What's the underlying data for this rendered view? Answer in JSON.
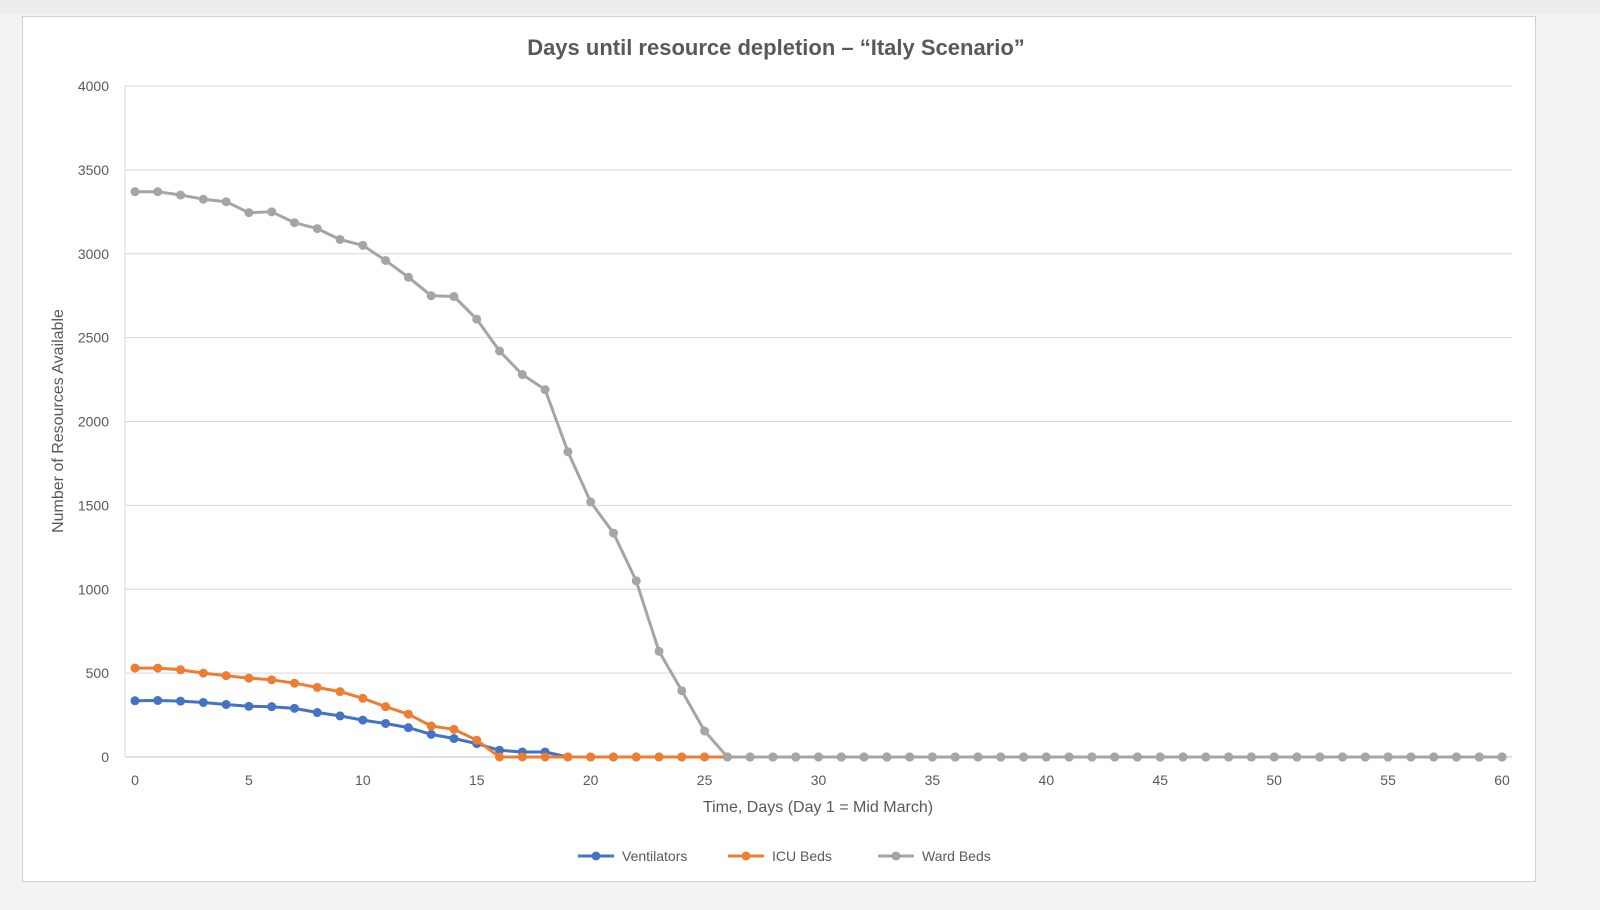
{
  "chart_data": {
    "type": "line",
    "title": "Days until resource depletion – “Italy Scenario”",
    "xlabel": "Time, Days (Day 1 = Mid March)",
    "ylabel": "Number of Resources Available",
    "xlim": [
      0,
      60
    ],
    "ylim": [
      0,
      4000
    ],
    "x_ticks": [
      "0",
      "5",
      "10",
      "15",
      "20",
      "25",
      "30",
      "35",
      "40",
      "45",
      "50",
      "55",
      "60"
    ],
    "y_ticks": [
      "0",
      "500",
      "1000",
      "1500",
      "2000",
      "2500",
      "3000",
      "3500",
      "4000"
    ],
    "grid": "horizontal",
    "legend_position": "bottom",
    "x": [
      0,
      1,
      2,
      3,
      4,
      5,
      6,
      7,
      8,
      9,
      10,
      11,
      12,
      13,
      14,
      15,
      16,
      17,
      18,
      19,
      20,
      21,
      22,
      23,
      24,
      25,
      26,
      27,
      28,
      29,
      30,
      31,
      32,
      33,
      34,
      35,
      36,
      37,
      38,
      39,
      40,
      41,
      42,
      43,
      44,
      45,
      46,
      47,
      48,
      49,
      50,
      51,
      52,
      53,
      54,
      55,
      56,
      57,
      58,
      59,
      60
    ],
    "series": [
      {
        "name": "Ventilators",
        "color": "#4472c4",
        "values": [
          335,
          337,
          333,
          325,
          313,
          302,
          300,
          290,
          265,
          245,
          220,
          200,
          175,
          135,
          110,
          80,
          40,
          30,
          30,
          0,
          0,
          0,
          0,
          0,
          0,
          0,
          0,
          0,
          0,
          0,
          0,
          0,
          0,
          0,
          0,
          0,
          0,
          0,
          0,
          0,
          0,
          0,
          0,
          0,
          0,
          0,
          0,
          0,
          0,
          0,
          0,
          0,
          0,
          0,
          0,
          0,
          0,
          0,
          0,
          0,
          0
        ]
      },
      {
        "name": "ICU Beds",
        "color": "#ed7d31",
        "values": [
          530,
          530,
          520,
          500,
          485,
          470,
          460,
          440,
          415,
          390,
          350,
          300,
          255,
          185,
          165,
          100,
          0,
          0,
          0,
          0,
          0,
          0,
          0,
          0,
          0,
          0,
          0,
          0,
          0,
          0,
          0,
          0,
          0,
          0,
          0,
          0,
          0,
          0,
          0,
          0,
          0,
          0,
          0,
          0,
          0,
          0,
          0,
          0,
          0,
          0,
          0,
          0,
          0,
          0,
          0,
          0,
          0,
          0,
          0,
          0,
          0
        ]
      },
      {
        "name": "Ward Beds",
        "color": "#a5a5a5",
        "values": [
          3370,
          3370,
          3350,
          3325,
          3310,
          3245,
          3250,
          3185,
          3150,
          3085,
          3050,
          2960,
          2860,
          2750,
          2745,
          2610,
          2420,
          2280,
          2190,
          1820,
          1520,
          1335,
          1050,
          630,
          395,
          155,
          0,
          0,
          0,
          0,
          0,
          0,
          0,
          0,
          0,
          0,
          0,
          0,
          0,
          0,
          0,
          0,
          0,
          0,
          0,
          0,
          0,
          0,
          0,
          0,
          0,
          0,
          0,
          0,
          0,
          0,
          0,
          0,
          0,
          0,
          0
        ]
      }
    ]
  }
}
